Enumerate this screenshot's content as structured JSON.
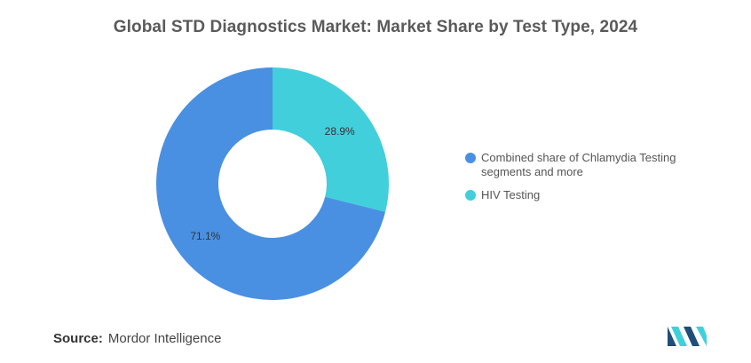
{
  "chart_data": {
    "type": "pie",
    "donut": true,
    "title": "Global STD Diagnostics Market: Market Share by Test Type, 2024",
    "categories": [
      "Combined share of Chlamydia Testing segments and more",
      "HIV Testing"
    ],
    "values": [
      71.1,
      28.9
    ],
    "value_labels": [
      "71.1%",
      "28.9%"
    ],
    "colors": [
      "#4a90e2",
      "#41cfdc"
    ],
    "legend_position": "right"
  },
  "legend": {
    "items": [
      {
        "label": "Combined share of Chlamydia Testing segments and more",
        "color": "#4a90e2"
      },
      {
        "label": "HIV Testing",
        "color": "#41cfdc"
      }
    ]
  },
  "source": {
    "label": "Source:",
    "text": "Mordor Intelligence"
  },
  "logo": {
    "icon": "mordor-intelligence-logo-icon",
    "colors": [
      "#1f4e79",
      "#41cfdc"
    ]
  }
}
